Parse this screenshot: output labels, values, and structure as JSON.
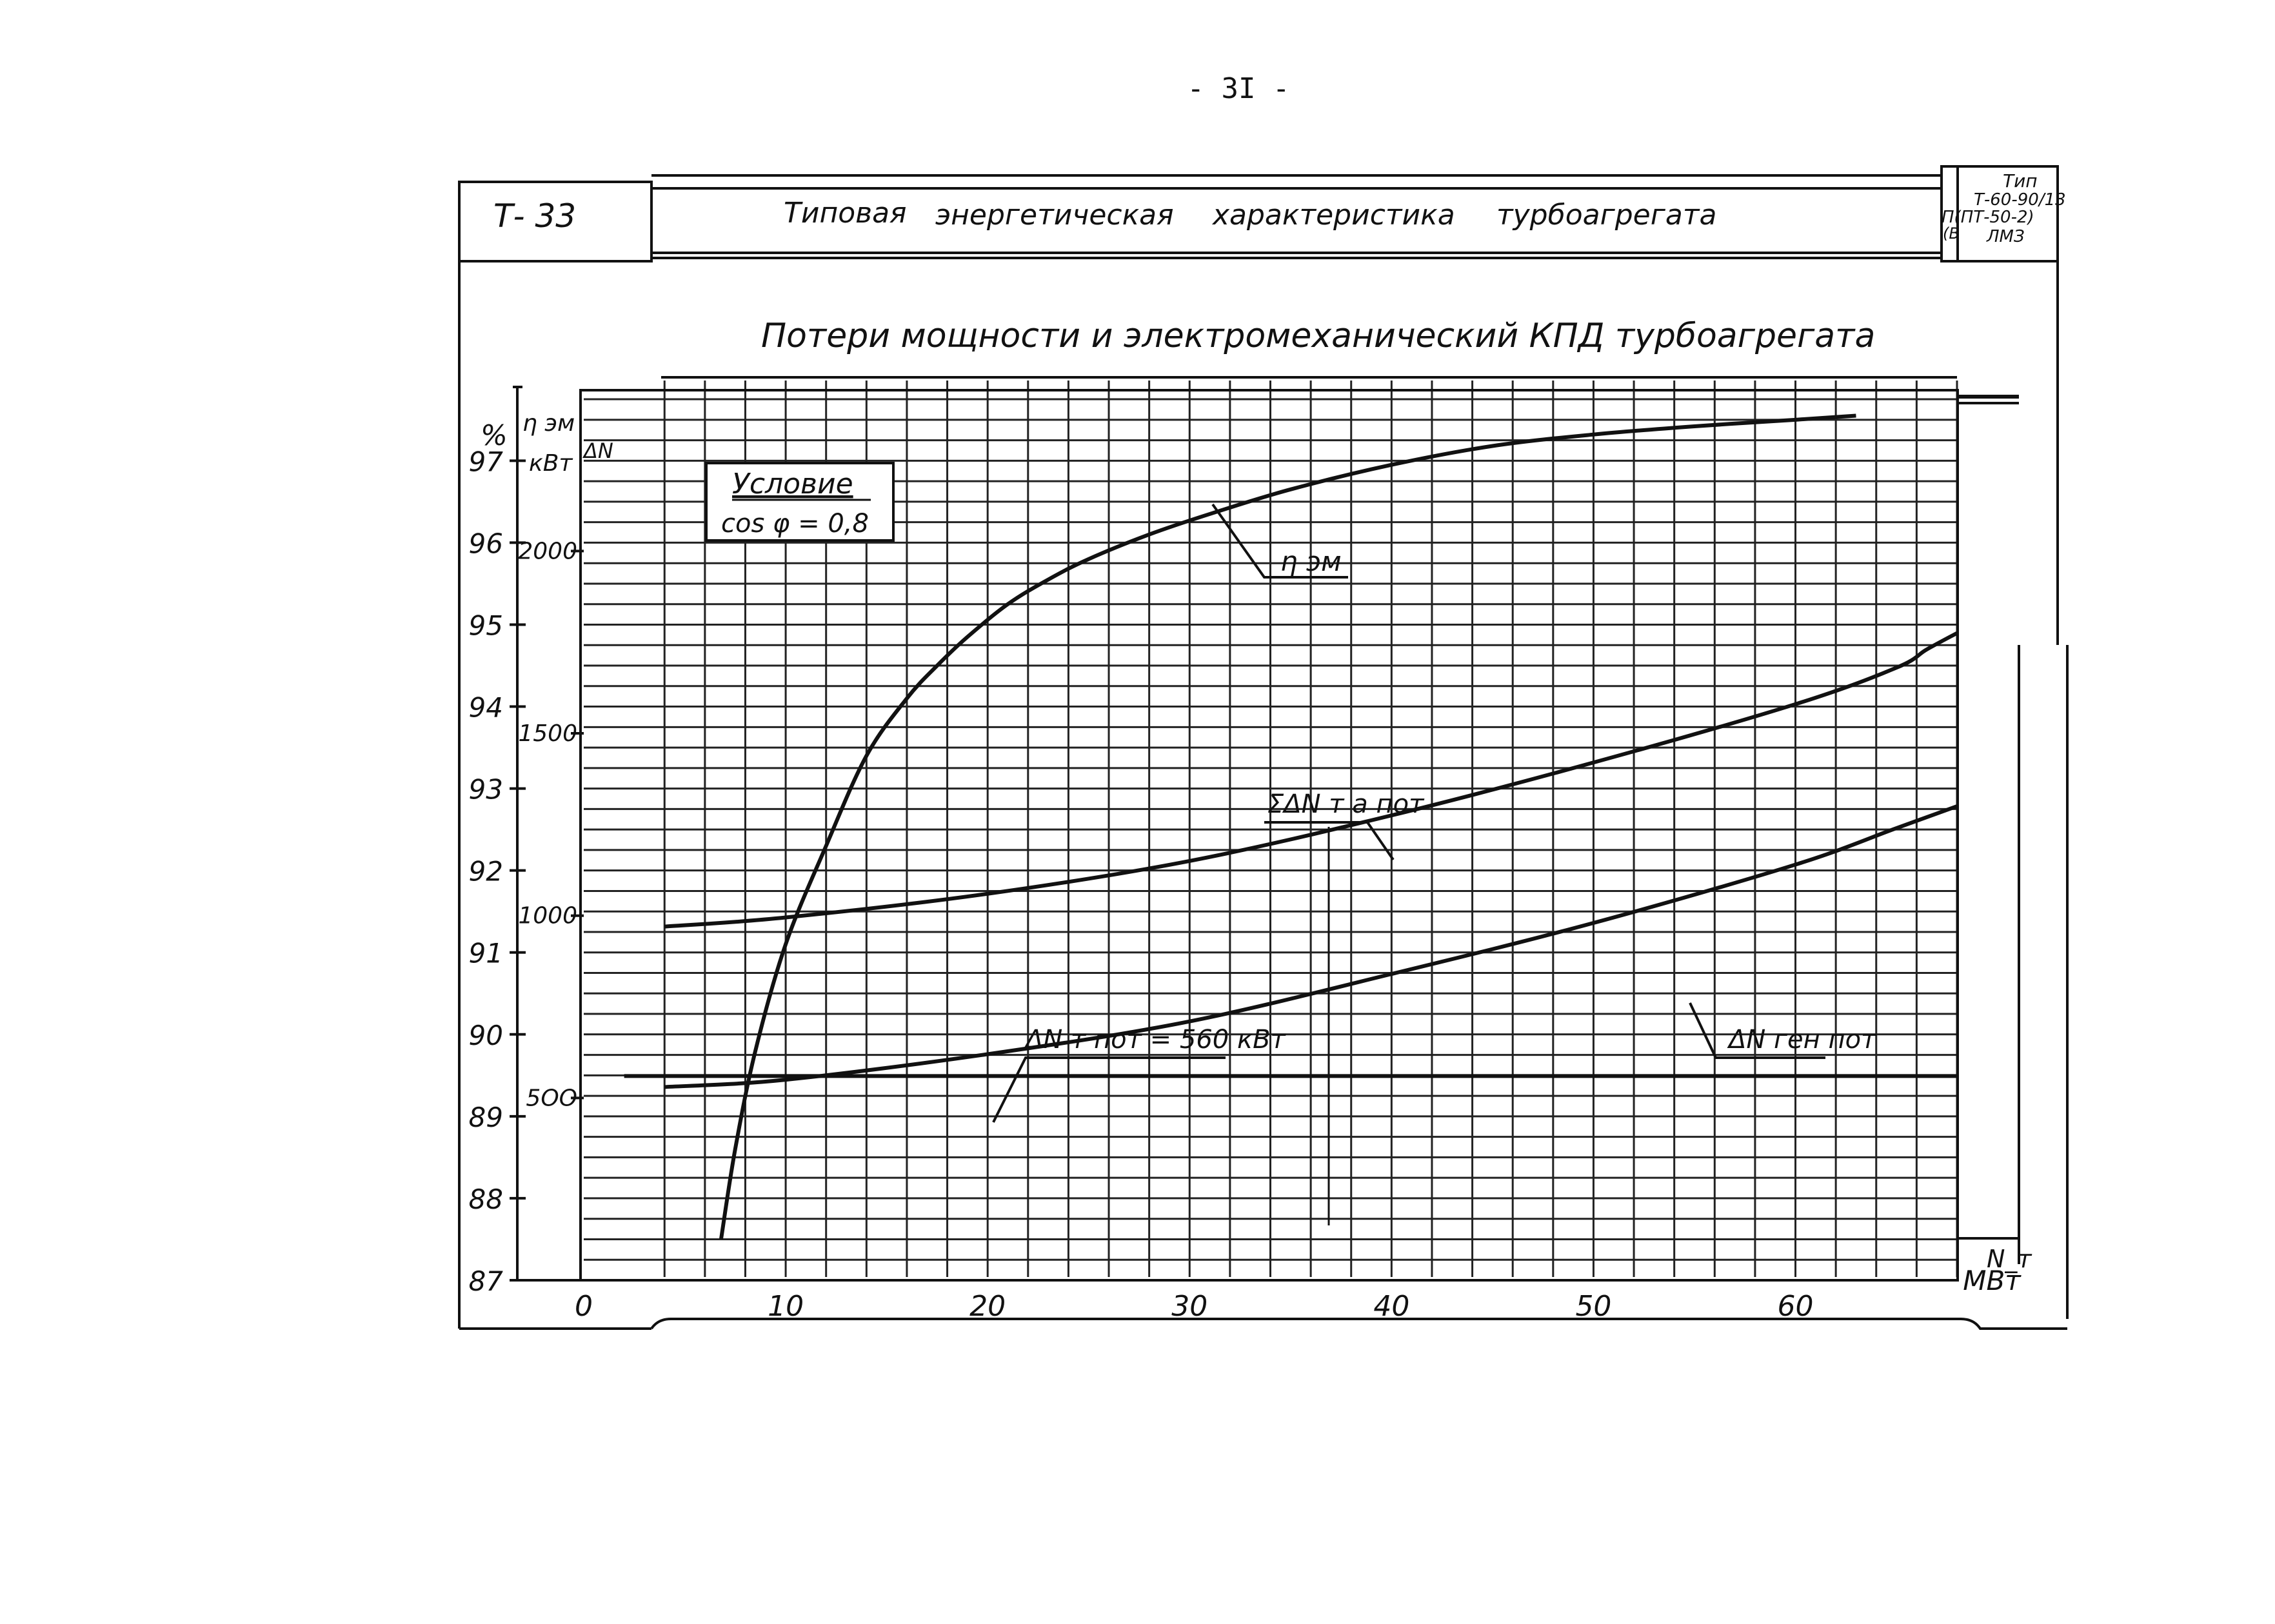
{
  "page_number": "- 3I -",
  "header": {
    "code": "Т- 33",
    "title_words": [
      "Типовая",
      "энергетическая",
      "характеристика",
      "турбоагрегата"
    ],
    "type_box": [
      "Тип",
      "Т-60-90/13",
      "П(ПТ-50-2)",
      "(В",
      "ЛМЗ"
    ]
  },
  "chart_data": {
    "type": "line",
    "title": "Потери мощности и электромеханический КПД турбоагрегата",
    "x": {
      "label": "N_т",
      "unit": "МВт",
      "ticks": [
        0,
        10,
        20,
        30,
        40,
        50,
        60
      ],
      "tick_labels": [
        "0",
        "10",
        "20",
        "30",
        "40",
        "50",
        "60"
      ],
      "range": [
        0,
        68
      ]
    },
    "y_left": {
      "label": "η эм",
      "unit": "%",
      "ticks": [
        87,
        88,
        89,
        90,
        91,
        92,
        93,
        94,
        95,
        96,
        97
      ],
      "tick_labels": [
        "87",
        "88",
        "89",
        "90",
        "91",
        "92",
        "93",
        "94",
        "95",
        "96",
        "97"
      ],
      "range": [
        87,
        97.9
      ]
    },
    "y_right": {
      "label": "ΔN",
      "unit": "кВт",
      "ticks": [
        500,
        1000,
        1500,
        2000
      ],
      "tick_labels": [
        "5ОО",
        "1000",
        "1500",
        "2000"
      ],
      "range": [
        0,
        2450
      ]
    },
    "condition_box": {
      "heading": "Условие",
      "text": "cos φ = 0,8"
    },
    "grid": true,
    "series": [
      {
        "name": "η эм",
        "axis": "left",
        "x": [
          6.8,
          7.5,
          8.5,
          10,
          12,
          14,
          16,
          17.5,
          19,
          21,
          23,
          25,
          28,
          31,
          35,
          40,
          45,
          50,
          55,
          60,
          63
        ],
        "y": [
          87.5,
          88.6,
          89.8,
          91.1,
          92.3,
          93.4,
          94.1,
          94.5,
          94.85,
          95.25,
          95.55,
          95.8,
          96.1,
          96.35,
          96.65,
          96.95,
          97.18,
          97.32,
          97.42,
          97.5,
          97.55
        ]
      },
      {
        "name": "ΣΔN т.а пот",
        "axis": "right",
        "x": [
          4,
          10,
          20,
          30,
          40,
          50,
          60,
          65,
          66.5,
          68
        ],
        "y": [
          970,
          995,
          1060,
          1150,
          1275,
          1420,
          1580,
          1680,
          1730,
          1775
        ]
      },
      {
        "name": "ΔN ген пот",
        "axis": "right",
        "x": [
          4,
          10,
          20,
          30,
          40,
          50,
          60,
          65,
          68
        ],
        "y": [
          530,
          550,
          620,
          710,
          840,
          980,
          1140,
          1240,
          1300
        ]
      },
      {
        "name": "ΔN т пот = 560 кВт",
        "axis": "right",
        "x": [
          2,
          68
        ],
        "y": [
          560,
          560
        ]
      }
    ],
    "annotations": [
      {
        "series": "η эм",
        "text": "η эм"
      },
      {
        "series": "ΣΔN т.а пот",
        "text": "ΣΔN т а пот"
      },
      {
        "series": "ΔN ген пот",
        "text": "ΔN ген пот"
      },
      {
        "series": "ΔN т пот = 560 кВт",
        "text": "ΔN т пот = 560 кВт"
      }
    ]
  }
}
